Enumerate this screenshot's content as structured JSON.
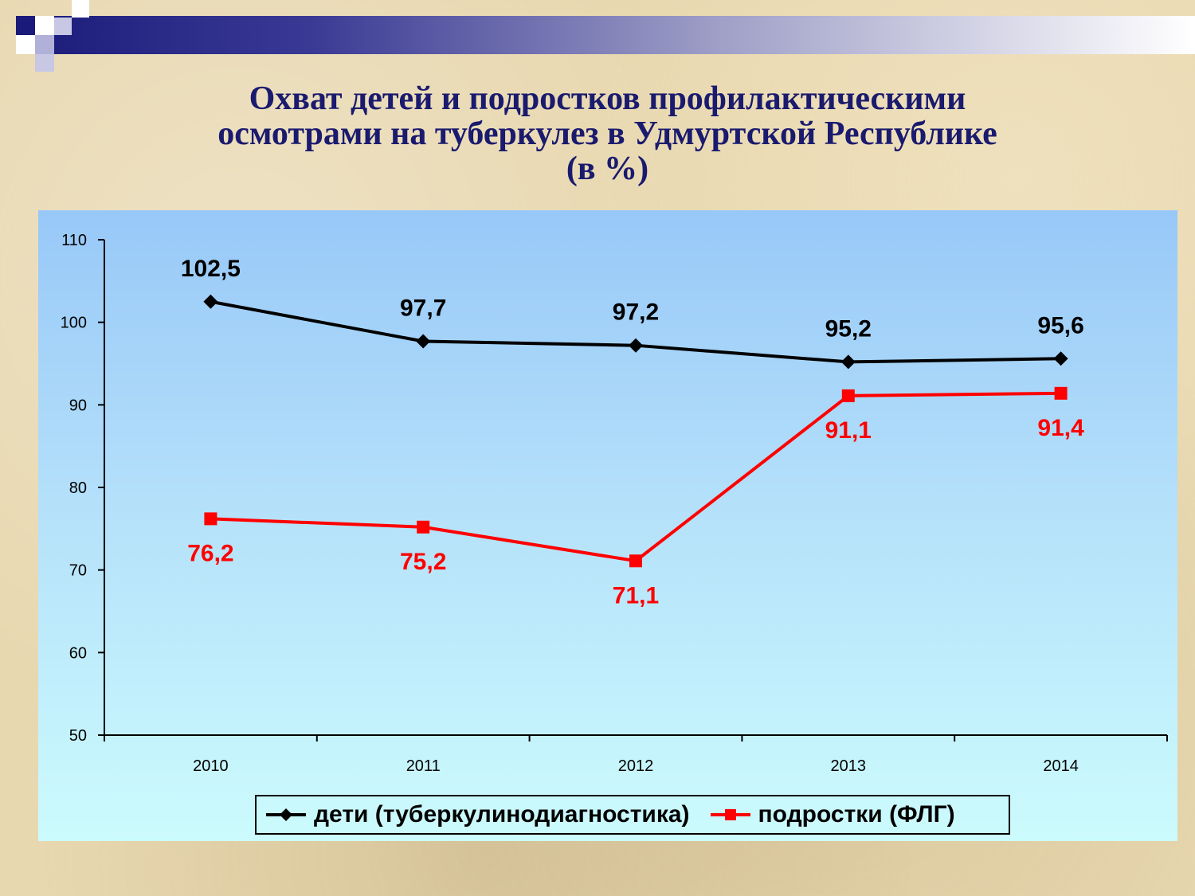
{
  "slide": {
    "title_lines": [
      "Охват детей и подростков профилактическими",
      "осмотрами на туберкулез в Удмуртской Республике",
      "(в %)"
    ],
    "title_color": "#1a1a6e"
  },
  "chart_data": {
    "type": "line",
    "x": [
      "2010",
      "2011",
      "2012",
      "2013",
      "2014"
    ],
    "ylim": [
      50,
      110
    ],
    "yticks": [
      50,
      60,
      70,
      80,
      90,
      100,
      110
    ],
    "grid": false,
    "legend_position": "bottom",
    "series": [
      {
        "name": "дети (туберкулинодиагностика)",
        "values": [
          102.5,
          97.7,
          97.2,
          95.2,
          95.6
        ],
        "labels": [
          "102,5",
          "97,7",
          "97,2",
          "95,2",
          "95,6"
        ],
        "color": "#000000",
        "marker": "diamond"
      },
      {
        "name": "подростки (ФЛГ)",
        "values": [
          76.2,
          75.2,
          71.1,
          91.1,
          91.4
        ],
        "labels": [
          "76,2",
          "75,2",
          "71,1",
          "91,1",
          "91,4"
        ],
        "color": "#ff0000",
        "marker": "square"
      }
    ]
  }
}
